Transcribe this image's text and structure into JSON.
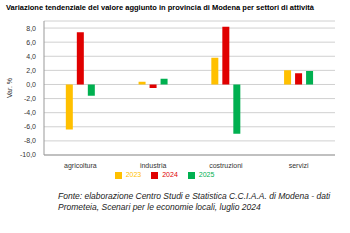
{
  "chart_data": {
    "type": "bar",
    "title": "Variazione tendenziale del valore aggiunto in provincia di Modena per settori di attività",
    "y_label": "Var. %",
    "categories": [
      "agricoltura",
      "industria",
      "costruzioni",
      "servizi"
    ],
    "series": [
      {
        "name": "2023",
        "color": "#ffc000",
        "values": [
          -6.4,
          0.4,
          3.8,
          2.0
        ]
      },
      {
        "name": "2024",
        "color": "#e00000",
        "values": [
          7.4,
          -0.5,
          8.2,
          1.6
        ]
      },
      {
        "name": "2025",
        "color": "#00b050",
        "values": [
          -1.6,
          0.8,
          -7.0,
          1.9
        ]
      }
    ],
    "ylim": [
      -10,
      9
    ],
    "yticks": [
      {
        "value": -10,
        "label": "-10,0"
      },
      {
        "value": -8,
        "label": "-8,0"
      },
      {
        "value": -6,
        "label": "-6,0"
      },
      {
        "value": -4,
        "label": "-4,0"
      },
      {
        "value": -2,
        "label": "-2,0"
      },
      {
        "value": 0,
        "label": "0,0"
      },
      {
        "value": 2,
        "label": "2,0"
      },
      {
        "value": 4,
        "label": "4,0"
      },
      {
        "value": 6,
        "label": "6,0"
      },
      {
        "value": 8,
        "label": "8,0"
      }
    ],
    "grid": true,
    "legend": "bottom",
    "annotations": [
      "Fonte: elaborazione Centro Studi e Statistica C.C.I.A.A. di Modena - dati Prometeia, Scenari per le economie locali, luglio 2024"
    ]
  }
}
